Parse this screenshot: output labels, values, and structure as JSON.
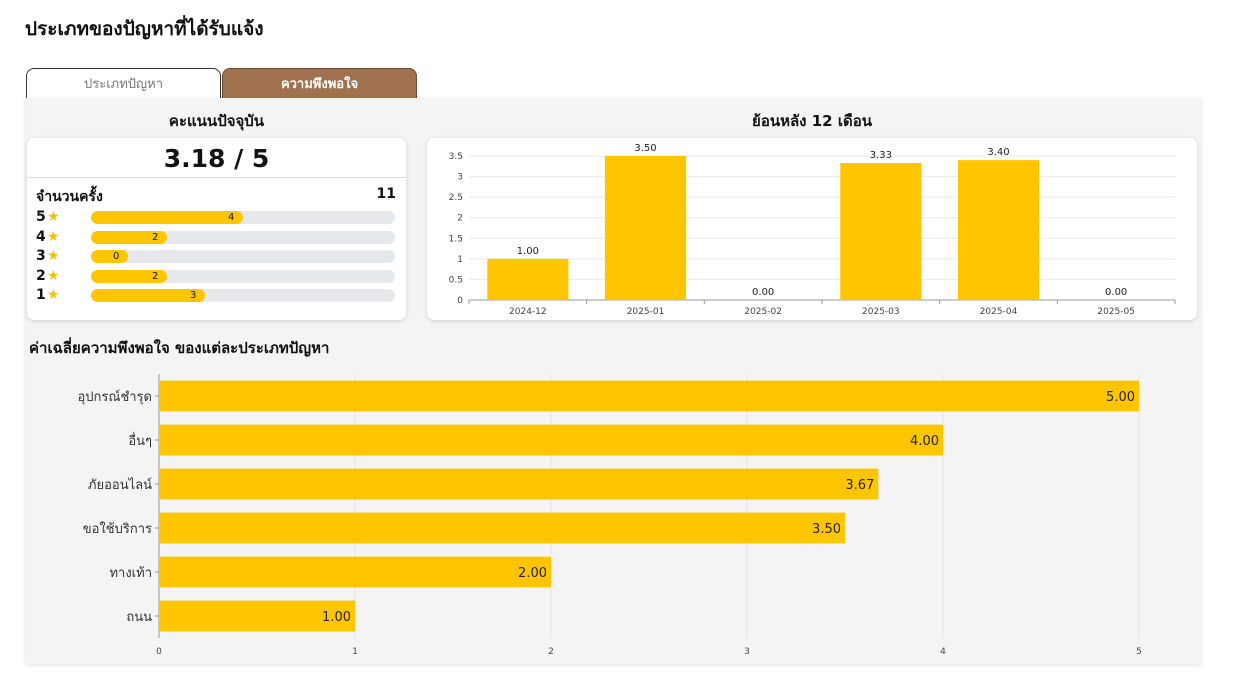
{
  "page_title": "ประเภทของปัญหาที่ได้รับแจ้ง",
  "tabs": [
    {
      "label": "ประเภทปัญหา",
      "active": false
    },
    {
      "label": "ความพึงพอใจ",
      "active": true
    }
  ],
  "current_score": {
    "title": "คะแนนปัจจุบัน",
    "value": "3.18 / 5",
    "count_label": "จำนวนครั้ง",
    "count_value": "11",
    "star_icon": "star-icon",
    "ratings": [
      {
        "stars": "5",
        "count": 4
      },
      {
        "stars": "4",
        "count": 2
      },
      {
        "stars": "3",
        "count": 0
      },
      {
        "stars": "2",
        "count": 2
      },
      {
        "stars": "1",
        "count": 3
      }
    ]
  },
  "colors": {
    "accent": "#ffc600",
    "tab_active": "#a0714f",
    "track": "#e6e8ec"
  },
  "chart_data": [
    {
      "type": "bar",
      "title": "ย้อนหลัง 12 เดือน",
      "categories": [
        "2024-12",
        "2025-01",
        "2025-02",
        "2025-03",
        "2025-04",
        "2025-05"
      ],
      "values": [
        1.0,
        3.5,
        0.0,
        3.33,
        3.4,
        0.0
      ],
      "value_labels": [
        "1.00",
        "3.50",
        "0.00",
        "3.33",
        "3.40",
        "0.00"
      ],
      "ylim": [
        0,
        3.5
      ],
      "yticks": [
        "0",
        "0.5",
        "1",
        "1.5",
        "2",
        "2.5",
        "3",
        "3.5"
      ],
      "grid": true,
      "color": "#ffc600"
    },
    {
      "type": "bar",
      "orientation": "horizontal",
      "title": "ค่าเฉลี่ยความพึงพอใจ ของแต่ละประเภทปัญหา",
      "categories": [
        "อุปกรณ์ชำรุด",
        "อื่นๆ",
        "ภัยออนไลน์",
        "ขอใช้บริการ",
        "ทางเท้า",
        "ถนน"
      ],
      "values": [
        5.0,
        4.0,
        3.67,
        3.5,
        2.0,
        1.0
      ],
      "value_labels": [
        "5.00",
        "4.00",
        "3.67",
        "3.50",
        "2.00",
        "1.00"
      ],
      "xlim": [
        0,
        5
      ],
      "xticks": [
        "0",
        "1",
        "2",
        "3",
        "4",
        "5"
      ],
      "grid": true,
      "color": "#ffc600"
    }
  ]
}
